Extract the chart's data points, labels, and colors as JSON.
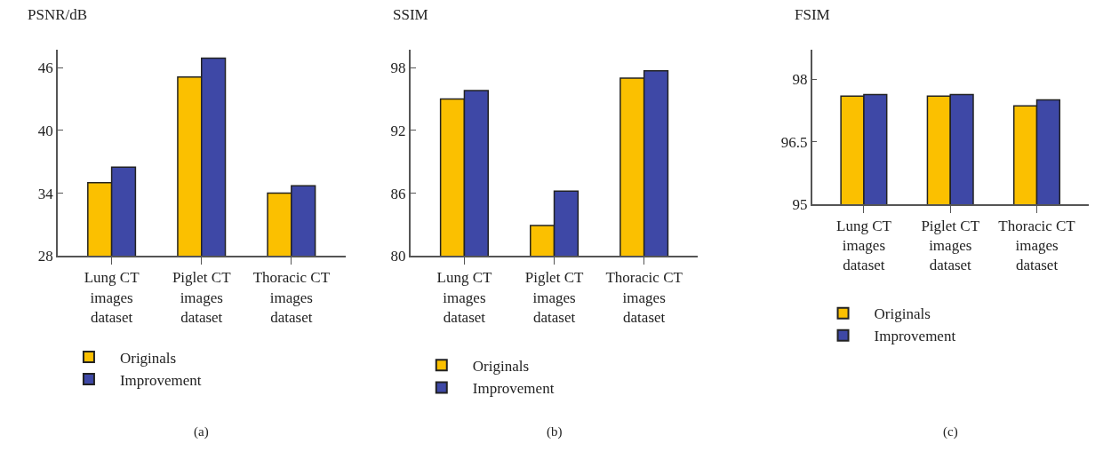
{
  "chart_data": [
    {
      "type": "bar",
      "ylabel": "PSNR/dB",
      "categories": [
        "Lung CT\nimages\ndataset",
        "Piglet CT\nimages\ndataset",
        "Thoracic CT\nimages\ndataset"
      ],
      "series": [
        {
          "name": "Originals",
          "color": "#fbc000",
          "values": [
            35.0,
            45.1,
            34.0
          ]
        },
        {
          "name": "Improvement",
          "color": "#3e48a6",
          "values": [
            36.5,
            46.9,
            34.7
          ]
        }
      ],
      "ylim": [
        28,
        47.7
      ],
      "yticks": [
        28,
        34,
        40,
        46
      ],
      "legend": "bottom",
      "annotations": [
        "(a)"
      ]
    },
    {
      "type": "bar",
      "ylabel": "SSIM",
      "categories": [
        "Lung CT\nimages\ndataset",
        "Piglet CT\nimages\ndataset",
        "Thoracic CT\nimages\ndataset"
      ],
      "series": [
        {
          "name": "Originals",
          "color": "#fbc000",
          "values": [
            95.0,
            82.9,
            97.0
          ]
        },
        {
          "name": "Improvement",
          "color": "#3e48a6",
          "values": [
            95.8,
            86.2,
            97.7
          ]
        }
      ],
      "ylim": [
        80,
        99.7
      ],
      "yticks": [
        80,
        86,
        92,
        98
      ],
      "legend": "bottom",
      "annotations": [
        "(b)"
      ]
    },
    {
      "type": "bar",
      "ylabel": "FSIM",
      "categories": [
        "Lung CT\nimages\ndataset",
        "Piglet CT\nimages\ndataset",
        "Thoracic CT\nimages\ndataset"
      ],
      "series": [
        {
          "name": "Originals",
          "color": "#fbc000",
          "values": [
            97.59,
            97.59,
            97.36
          ]
        },
        {
          "name": "Improvement",
          "color": "#3e48a6",
          "values": [
            97.63,
            97.63,
            97.5
          ]
        }
      ],
      "ylim": [
        95,
        98.7
      ],
      "yticks": [
        95,
        96.5,
        98
      ],
      "legend": "bottom",
      "annotations": [
        "(c)"
      ]
    }
  ]
}
